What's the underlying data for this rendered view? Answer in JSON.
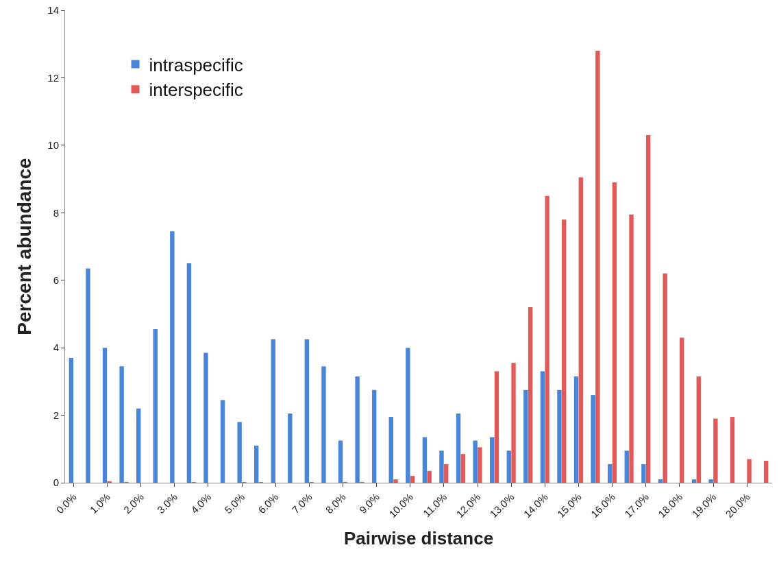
{
  "chart_data": {
    "type": "bar",
    "xlabel": "Pairwise distance",
    "ylabel": "Percent abundance",
    "categories": [
      "0.0%",
      null,
      "1.0%",
      null,
      "2.0%",
      null,
      "3.0%",
      null,
      "4.0%",
      null,
      "5.0%",
      null,
      "6.0%",
      null,
      "7.0%",
      null,
      "8.0%",
      null,
      "9.0%",
      null,
      "10.0%",
      null,
      "11.0%",
      null,
      "12.0%",
      null,
      "13.0%",
      null,
      "14.0%",
      null,
      "15.0%",
      null,
      "16.0%",
      null,
      "17.0%",
      null,
      "18.0%",
      null,
      "19.0%",
      null,
      "20.0%",
      null
    ],
    "series": [
      {
        "name": "intraspecific",
        "color": "#4a86d8",
        "values": [
          3.7,
          6.35,
          4.0,
          3.45,
          2.2,
          4.55,
          7.45,
          6.5,
          3.85,
          2.45,
          1.8,
          1.1,
          4.25,
          2.05,
          4.25,
          3.45,
          1.25,
          3.15,
          2.75,
          1.95,
          4.0,
          1.35,
          0.95,
          2.05,
          1.25,
          1.35,
          0.95,
          2.75,
          3.3,
          2.75,
          3.15,
          2.6,
          0.55,
          0.95,
          0.55,
          0.1,
          0,
          0.1,
          0.1,
          0,
          0,
          0
        ]
      },
      {
        "name": "interspecific",
        "color": "#e05a5a",
        "values": [
          0,
          0,
          0.03,
          0.02,
          0,
          0,
          0,
          0.02,
          0,
          0,
          0.02,
          0.02,
          0,
          0,
          0.02,
          0,
          0.02,
          0.02,
          0,
          0.1,
          0.2,
          0.35,
          0.55,
          0.85,
          1.05,
          3.3,
          3.55,
          5.2,
          8.5,
          7.8,
          9.05,
          12.8,
          8.9,
          7.95,
          10.3,
          6.2,
          4.3,
          3.15,
          1.9,
          1.95,
          0.7,
          0.65
        ]
      }
    ],
    "ylim": [
      0,
      14
    ],
    "yticks": [
      0,
      2,
      4,
      6,
      8,
      10,
      12,
      14
    ],
    "grid": false,
    "legend": "top left"
  }
}
